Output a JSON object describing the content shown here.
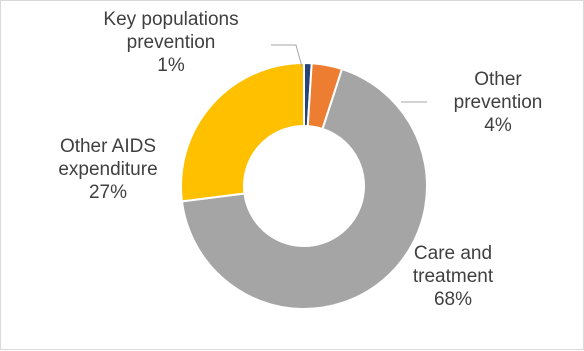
{
  "chart_data": {
    "type": "pie",
    "hole": true,
    "legend": "none",
    "slices": [
      {
        "label": [
          "Key populations",
          "prevention"
        ],
        "pct_label": "1%",
        "value": 1,
        "color": "#264478"
      },
      {
        "label": [
          "Other",
          "prevention"
        ],
        "pct_label": "4%",
        "value": 4,
        "color": "#ED7D31"
      },
      {
        "label": [
          "Care and",
          "treatment"
        ],
        "pct_label": "68%",
        "value": 68,
        "color": "#A5A5A5"
      },
      {
        "label": [
          "Other AIDS",
          "expenditure"
        ],
        "pct_label": "27%",
        "value": 27,
        "color": "#FFC000"
      }
    ]
  }
}
